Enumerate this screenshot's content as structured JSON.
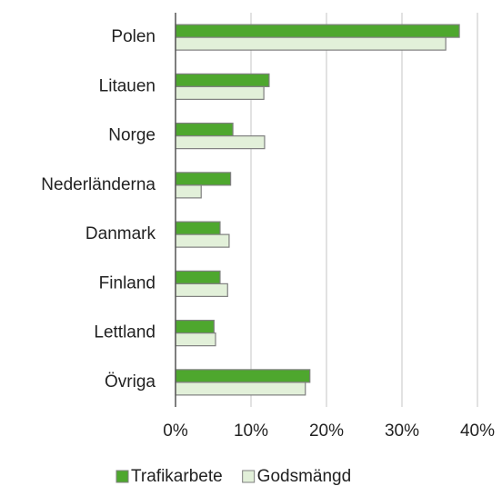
{
  "chart_data": {
    "type": "hbar",
    "categories": [
      "Polen",
      "Litauen",
      "Norge",
      "Nederländerna",
      "Danmark",
      "Finland",
      "Lettland",
      "Övriga"
    ],
    "series": [
      {
        "name": "Trafikarbete",
        "color": "#4ea72e",
        "values": [
          37.6,
          12.4,
          7.6,
          7.3,
          5.9,
          5.9,
          5.1,
          17.8
        ]
      },
      {
        "name": "Godsmängd",
        "color": "#e2f0d9",
        "values": [
          35.8,
          11.7,
          11.8,
          3.4,
          7.1,
          6.9,
          5.3,
          17.2
        ]
      }
    ],
    "xlim": [
      0,
      40
    ],
    "xticks": [
      {
        "value": 0,
        "label": "0%"
      },
      {
        "value": 10,
        "label": "10%"
      },
      {
        "value": 20,
        "label": "20%"
      },
      {
        "value": 30,
        "label": "30%"
      },
      {
        "value": 40,
        "label": "40%"
      }
    ],
    "grid": true,
    "legend": "bottom"
  }
}
